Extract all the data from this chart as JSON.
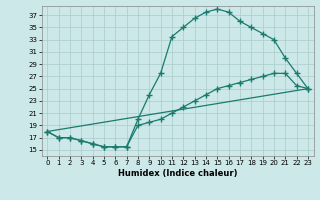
{
  "title": "",
  "xlabel": "Humidex (Indice chaleur)",
  "bg_color": "#cce8e8",
  "line_color": "#1a7a6e",
  "grid_color": "#aacccc",
  "xlim": [
    -0.5,
    23.5
  ],
  "ylim": [
    14.0,
    38.5
  ],
  "yticks": [
    15,
    17,
    19,
    21,
    23,
    25,
    27,
    29,
    31,
    33,
    35,
    37
  ],
  "xticks": [
    0,
    1,
    2,
    3,
    4,
    5,
    6,
    7,
    8,
    9,
    10,
    11,
    12,
    13,
    14,
    15,
    16,
    17,
    18,
    19,
    20,
    21,
    22,
    23
  ],
  "line1_x": [
    0,
    1,
    2,
    3,
    4,
    5,
    6,
    7,
    8,
    9,
    10,
    11,
    12,
    13,
    14,
    15,
    16,
    17,
    18,
    19,
    20,
    21,
    22,
    23
  ],
  "line1_y": [
    18,
    17,
    17,
    16.5,
    16,
    15.5,
    15.5,
    15.5,
    20,
    24,
    27.5,
    33.5,
    35,
    36.5,
    37.5,
    38,
    37.5,
    36,
    35,
    34,
    33,
    30,
    27.5,
    25
  ],
  "line2_x": [
    0,
    23
  ],
  "line2_y": [
    18,
    25
  ],
  "line3_x": [
    0,
    1,
    2,
    3,
    4,
    5,
    6,
    7,
    8,
    9,
    10,
    11,
    12,
    13,
    14,
    15,
    16,
    17,
    18,
    19,
    20,
    21,
    22,
    23
  ],
  "line3_y": [
    18,
    17,
    17,
    16.5,
    16,
    15.5,
    15.5,
    15.5,
    19,
    19.5,
    20,
    21,
    22,
    23,
    24,
    25,
    25.5,
    26,
    26.5,
    27,
    27.5,
    27.5,
    25.5,
    25
  ]
}
